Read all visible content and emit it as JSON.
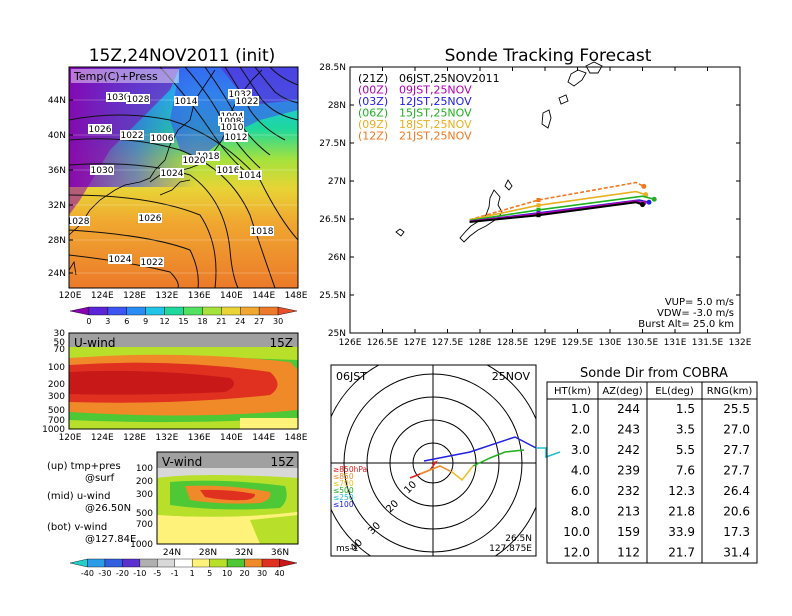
{
  "left_panel": {
    "title": "15Z,24NOV2011 (init)",
    "map_label": "Temp(C)+Press",
    "lat_ticks": [
      "44N",
      "40N",
      "36N",
      "32N",
      "28N",
      "24N"
    ],
    "lon_ticks": [
      "120E",
      "124E",
      "128E",
      "132E",
      "136E",
      "140E",
      "144E",
      "148E"
    ],
    "pressure_labels": [
      "1030",
      "1028",
      "1014",
      "1032",
      "1026",
      "1022",
      "1006",
      "1004",
      "1022",
      "1008",
      "1010",
      "1012",
      "1018",
      "1020",
      "1030",
      "1024",
      "1016",
      "1014",
      "1028",
      "1026",
      "1018",
      "1024",
      "1022"
    ],
    "temp_colorbar": {
      "labels": [
        "0",
        "3",
        "6",
        "9",
        "12",
        "15",
        "18",
        "21",
        "24",
        "27",
        "30"
      ],
      "colors": [
        "#8800b0",
        "#5a26d8",
        "#3c54f0",
        "#2a8cf5",
        "#22c4e6",
        "#1ed89c",
        "#52e060",
        "#a6e23c",
        "#e8d436",
        "#f0a830",
        "#ec7a2a",
        "#e84e2a"
      ]
    },
    "u_wind": {
      "label": "U-wind",
      "time": "15Z",
      "y_ticks": [
        "30",
        "50",
        "70",
        "100",
        "200",
        "300",
        "500",
        "700",
        "1000"
      ],
      "x_ticks": [
        "120E",
        "124E",
        "128E",
        "132E",
        "136E",
        "140E",
        "144E",
        "148E"
      ]
    },
    "legend_notes": [
      "(up) tmp+pres",
      "@surf",
      "(mid) u-wind",
      "@26.50N",
      "(bot) v-wind",
      "@127.84E"
    ],
    "v_wind": {
      "label": "V-wind",
      "time": "15Z",
      "y_ticks": [
        "100",
        "200",
        "300",
        "500",
        "700",
        "1000"
      ],
      "x_ticks": [
        "24N",
        "28N",
        "32N",
        "36N"
      ]
    },
    "wind_colorbar": {
      "labels": [
        "-40",
        "-30",
        "-20",
        "-10",
        "-5",
        "-1",
        "1",
        "5",
        "10",
        "20",
        "30",
        "40"
      ],
      "colors": [
        "#20d0c8",
        "#2a9ce8",
        "#3060e0",
        "#5a30d0",
        "#b0b0b0",
        "#d8d8d8",
        "#ffffff",
        "#fff27a",
        "#b8e02a",
        "#4ec834",
        "#f08a28",
        "#e03020",
        "#c81818"
      ]
    }
  },
  "tracking": {
    "title": "Sonde Tracking Forecast",
    "lat_ticks": [
      "28.5N",
      "28N",
      "27.5N",
      "27N",
      "26.5N",
      "26N",
      "25.5N",
      "25N"
    ],
    "lon_ticks": [
      "126E",
      "126.5E",
      "127E",
      "127.5E",
      "128E",
      "128.5E",
      "129E",
      "129.5E",
      "130E",
      "130.5E",
      "131E",
      "131.5E",
      "132E"
    ],
    "legend": [
      {
        "code": "(21Z)",
        "text": "06JST,25NOV2011",
        "color": "#000000"
      },
      {
        "code": "(00Z)",
        "text": "09JST,25NOV",
        "color": "#b000b0"
      },
      {
        "code": "(03Z)",
        "text": "12JST,25NOV",
        "color": "#2020e0"
      },
      {
        "code": "(06Z)",
        "text": "15JST,25NOV",
        "color": "#20b020"
      },
      {
        "code": "(09Z)",
        "text": "18JST,25NOV",
        "color": "#e8b020"
      },
      {
        "code": "(12Z)",
        "text": "21JST,25NOV",
        "color": "#f07820"
      }
    ],
    "params": [
      "VUP= 5.0 m/s",
      "VDW= -3.0 m/s",
      "Burst Alt= 25.0 km"
    ],
    "tracks": [
      {
        "color": "#f07820",
        "points": [
          [
            127.84,
            26.49
          ],
          [
            128.9,
            26.75
          ],
          [
            130.4,
            26.98
          ],
          [
            130.52,
            26.93
          ]
        ]
      },
      {
        "color": "#e8b020",
        "points": [
          [
            127.84,
            26.49
          ],
          [
            128.9,
            26.68
          ],
          [
            130.4,
            26.86
          ],
          [
            130.55,
            26.82
          ]
        ]
      },
      {
        "color": "#20b020",
        "points": [
          [
            127.84,
            26.48
          ],
          [
            128.9,
            26.62
          ],
          [
            130.5,
            26.8
          ],
          [
            130.68,
            26.76
          ]
        ]
      },
      {
        "color": "#2020e0",
        "points": [
          [
            127.84,
            26.47
          ],
          [
            128.9,
            26.58
          ],
          [
            130.45,
            26.75
          ],
          [
            130.6,
            26.72
          ]
        ]
      },
      {
        "color": "#b000b0",
        "points": [
          [
            127.84,
            26.47
          ],
          [
            128.9,
            26.57
          ],
          [
            130.4,
            26.74
          ],
          [
            130.52,
            26.71
          ]
        ]
      },
      {
        "color": "#000000",
        "points": [
          [
            127.84,
            26.46
          ],
          [
            128.9,
            26.55
          ],
          [
            130.4,
            26.72
          ],
          [
            130.5,
            26.69
          ]
        ]
      }
    ]
  },
  "polar": {
    "time": "06JST",
    "date": "25NOV",
    "ring_labels": [
      "10",
      "20",
      "30",
      "40"
    ],
    "units": "ms-1",
    "location": [
      "26.5N",
      "127.875E"
    ],
    "levels": [
      {
        "text": "≥850hPa",
        "color": "#e02020"
      },
      {
        "text": "≤850",
        "color": "#f08a28"
      },
      {
        "text": "≤700",
        "color": "#e8c020"
      },
      {
        "text": "≤500",
        "color": "#20b020"
      },
      {
        "text": "≤250",
        "color": "#20c0d0"
      },
      {
        "text": "≤100",
        "color": "#2020e0"
      }
    ]
  },
  "sonde_dir": {
    "title": "Sonde Dir from COBRA",
    "headers": [
      "HT(km)",
      "AZ(deg)",
      "EL(deg)",
      "RNG(km)"
    ],
    "rows": [
      [
        "1.0",
        "244",
        "1.5",
        "25.5"
      ],
      [
        "2.0",
        "243",
        "3.5",
        "27.0"
      ],
      [
        "3.0",
        "242",
        "5.5",
        "27.7"
      ],
      [
        "4.0",
        "239",
        "7.6",
        "27.7"
      ],
      [
        "6.0",
        "232",
        "12.3",
        "26.4"
      ],
      [
        "8.0",
        "213",
        "21.8",
        "20.6"
      ],
      [
        "10.0",
        "159",
        "33.9",
        "17.3"
      ],
      [
        "12.0",
        "112",
        "21.7",
        "31.4"
      ]
    ]
  }
}
